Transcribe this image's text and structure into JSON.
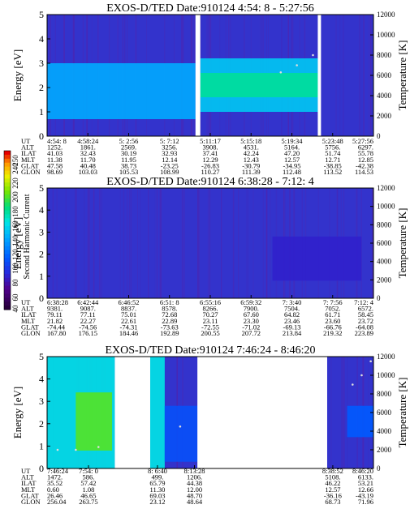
{
  "chart_data": [
    {
      "type": "heatmap",
      "title": "EXOS-D/TED   Date:910124   4:54: 8 - 5:27:56",
      "ylabel": "Energy [eV]",
      "y2label": "Temperature [K]",
      "ylim": [
        0,
        5
      ],
      "y2lim": [
        0,
        12000
      ],
      "yticks": [
        "0",
        "1",
        "2",
        "3",
        "4",
        "5"
      ],
      "y2ticks": [
        "0",
        "2000",
        "4000",
        "6000",
        "8000",
        "10000",
        "12000"
      ],
      "xlim_sec": [
        17648,
        19676
      ],
      "gaps_sec": [
        [
          18570,
          18600
        ],
        [
          19330,
          19350
        ]
      ],
      "bands": [
        {
          "x_sec": [
            17648,
            18570
          ],
          "ylim": [
            0.7,
            3.0
          ],
          "level": 0.45
        },
        {
          "x_sec": [
            18600,
            19330
          ],
          "ylim": [
            1.0,
            3.2
          ],
          "level": 0.5
        },
        {
          "x_sec": [
            18600,
            19330
          ],
          "ylim": [
            1.6,
            2.6
          ],
          "level": 0.62
        }
      ],
      "temperature_points": [
        [
          19100,
          6300
        ],
        [
          19200,
          7000
        ],
        [
          19300,
          8000
        ]
      ],
      "ephemeris": {
        "labels": [
          "UT",
          "ALT",
          "ILAT",
          "MLT",
          "GLAT",
          "GLON"
        ],
        "columns": [
          [
            "4:54: 8",
            "1252.",
            "41.03",
            "11.38",
            "47.58",
            "98.69"
          ],
          [
            "4:58:24",
            "1861.",
            "32.43",
            "11.70",
            "40.48",
            "103.03"
          ],
          [
            "5: 2:56",
            "2569.",
            "30.19",
            "11.95",
            "38.73",
            "105.53"
          ],
          [
            "5: 7:12",
            "3256.",
            "32.93",
            "12.14",
            "-23.25",
            "108.99"
          ],
          [
            "5:11:17",
            "3908.",
            "37.41",
            "12.29",
            "-26.83",
            "110.27"
          ],
          [
            "5:15:18",
            "4531.",
            "42.24",
            "12.43",
            "-30.79",
            "111.39"
          ],
          [
            "5:19:34",
            "5164.",
            "47.20",
            "12.57",
            "-34.95",
            "112.48"
          ],
          [
            "5:23:48",
            "5756.",
            "51.74",
            "12.71",
            "-38.85",
            "113.52"
          ],
          [
            "5:27:56",
            "6297.",
            "55.78",
            "12.85",
            "-42.38",
            "114.53"
          ]
        ]
      }
    },
    {
      "type": "heatmap",
      "title": "EXOS-D/TED   Date:910124   6:38:28 - 7:12: 4",
      "ylabel": "Energy [eV]",
      "y2label": "Temperature [K]",
      "ylim": [
        0,
        5
      ],
      "y2lim": [
        0,
        12000
      ],
      "yticks": [
        "0",
        "1",
        "2",
        "3",
        "4",
        "5"
      ],
      "y2ticks": [
        "0",
        "2000",
        "4000",
        "6000",
        "8000",
        "10000",
        "12000"
      ],
      "xlim_sec": [
        23908,
        25924
      ],
      "gaps_sec": [],
      "bands": [
        {
          "x_sec": [
            25300,
            25850
          ],
          "ylim": [
            0.8,
            2.8
          ],
          "level": 0.2
        }
      ],
      "temperature_points": [],
      "ephemeris": {
        "labels": [
          "UT",
          "ALT",
          "ILAT",
          "MLT",
          "GLAT",
          "GLON"
        ],
        "columns": [
          [
            "6:38:28",
            "9381.",
            "79.11",
            "21.82",
            "-74.44",
            "167.80"
          ],
          [
            "6:42:44",
            "9087.",
            "77.11",
            "22.27",
            "-74.56",
            "176.15"
          ],
          [
            "6:46:52",
            "8837.",
            "75.01",
            "22.61",
            "-74.31",
            "184.46"
          ],
          [
            "6:51: 8",
            "8578.",
            "72.68",
            "22.89",
            "-73.63",
            "192.89"
          ],
          [
            "6:55:16",
            "8266.",
            "70.27",
            "23.11",
            "-72.55",
            "200.55"
          ],
          [
            "6:59:32",
            "7900.",
            "67.60",
            "23.30",
            "-71.02",
            "207.72"
          ],
          [
            "7: 3:40",
            "7504.",
            "64.82",
            "23.46",
            "-69.13",
            "213.84"
          ],
          [
            "7: 7:56",
            "7052.",
            "61.71",
            "23.60",
            "-66.76",
            "219.32"
          ],
          [
            "7:12: 4",
            "6572.",
            "58.45",
            "23.72",
            "-64.08",
            "223.89"
          ]
        ]
      }
    },
    {
      "type": "heatmap",
      "title": "EXOS-D/TED   Date:910124   7:46:24 - 8:46:20",
      "ylabel": "Energy [eV]",
      "y2label": "Temperature [K]",
      "ylim": [
        0,
        5
      ],
      "y2lim": [
        0,
        12000
      ],
      "yticks": [
        "0",
        "1",
        "2",
        "3",
        "4",
        "5"
      ],
      "y2ticks": [
        "0",
        "2000",
        "4000",
        "6000",
        "8000",
        "10000",
        "12000"
      ],
      "xlim_sec": [
        27984,
        31580
      ],
      "gaps_sec": [
        [
          28730,
          29120
        ],
        [
          29640,
          31070
        ]
      ],
      "bands": [
        {
          "x_sec": [
            27984,
            28730
          ],
          "ylim": [
            0,
            5
          ],
          "level": 0.55
        },
        {
          "x_sec": [
            28300,
            28700
          ],
          "ylim": [
            0.8,
            3.4
          ],
          "level": 0.72
        },
        {
          "x_sec": [
            29120,
            29280
          ],
          "ylim": [
            0,
            5
          ],
          "level": 0.55
        },
        {
          "x_sec": [
            29280,
            29640
          ],
          "ylim": [
            0.3,
            2.8
          ],
          "level": 0.3
        },
        {
          "x_sec": [
            31290,
            31580
          ],
          "ylim": [
            1.4,
            2.8
          ],
          "level": 0.32
        }
      ],
      "temperature_points": [
        [
          28100,
          2000
        ],
        [
          28300,
          2000
        ],
        [
          28550,
          2300
        ],
        [
          29450,
          4500
        ],
        [
          31350,
          9000
        ],
        [
          31450,
          10000
        ],
        [
          31550,
          11500
        ]
      ],
      "ephemeris": {
        "labels": [
          "UT",
          "ALT",
          "ILAT",
          "MLT",
          "GLAT",
          "GLON"
        ],
        "columns": [
          [
            "7:46:24",
            "1472.",
            "35.52",
            "0.60",
            "26.46",
            "256.04"
          ],
          [
            "7:54: 0",
            "586.",
            "57.42",
            "1.08",
            "46.65",
            "263.75"
          ],
          [
            "8: 6:40",
            "499.",
            "65.79",
            "11.30",
            "69.03",
            "23.12"
          ],
          [
            "8:13:28",
            "1206.",
            "44.38",
            "12.00",
            "48.70",
            "48.64"
          ],
          [
            "8:38:52",
            "5108.",
            "46.22",
            "12.57",
            "-36.16",
            "68.73"
          ],
          [
            "8:46:20",
            "6133.",
            "53.21",
            "12.66",
            "-43.19",
            "71.96"
          ]
        ]
      }
    }
  ],
  "colorbar": {
    "label": "Second Harmonic Current",
    "ticks": [
      "40",
      "60",
      "80",
      "100",
      "120",
      "140",
      "160",
      "180",
      "200",
      "220",
      "240",
      "250"
    ]
  },
  "colors": {
    "background": "#3333cc",
    "gap": "#ffffff",
    "noise": "#5522aa",
    "temperature_marks": "#dddddd"
  }
}
